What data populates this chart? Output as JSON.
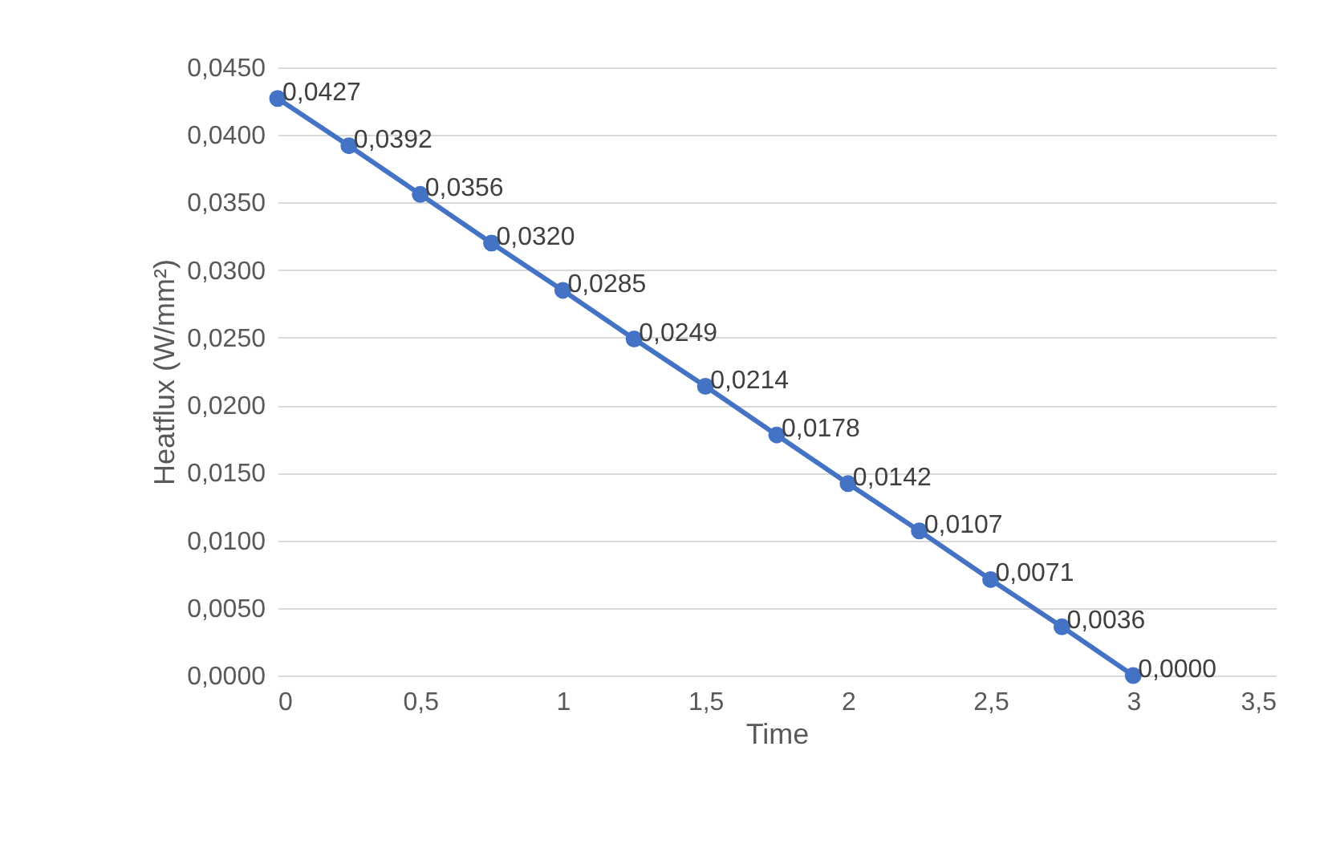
{
  "chart_data": {
    "type": "line",
    "xlabel": "Time",
    "ylabel": "Heatflux (W/mm²)",
    "x": [
      0,
      0.25,
      0.5,
      0.75,
      1,
      1.25,
      1.5,
      1.75,
      2,
      2.25,
      2.5,
      2.75,
      3
    ],
    "series": [
      {
        "color": "#4472c4",
        "values": [
          0.0427,
          0.0392,
          0.0356,
          0.032,
          0.0285,
          0.0249,
          0.0214,
          0.0178,
          0.0142,
          0.0107,
          0.0071,
          0.0036,
          0.0
        ],
        "value_labels": [
          "0,0427",
          "0,0392",
          "0,0356",
          "0,0320",
          "0,0285",
          "0,0249",
          "0,0214",
          "0,0178",
          "0,0142",
          "0,0107",
          "0,0071",
          "0,0036",
          "0,0000"
        ]
      }
    ],
    "xlim": [
      0,
      3.5
    ],
    "xticks": [
      0,
      {
        "value": 0.5,
        "label": "0,5"
      },
      1,
      {
        "value": 1.5,
        "label": "1,5"
      },
      2,
      {
        "value": 2.5,
        "label": "2,5"
      },
      3,
      {
        "value": 3.5,
        "label": "3,5"
      }
    ],
    "ylim": [
      0,
      0.045
    ],
    "yticks": [
      {
        "value": 0,
        "label": "0,0000"
      },
      {
        "value": 0.005,
        "label": "0,0050"
      },
      {
        "value": 0.01,
        "label": "0,0100"
      },
      {
        "value": 0.015,
        "label": "0,0150"
      },
      {
        "value": 0.02,
        "label": "0,0200"
      },
      {
        "value": 0.025,
        "label": "0,0250"
      },
      {
        "value": 0.03,
        "label": "0,0300"
      },
      {
        "value": 0.035,
        "label": "0,0350"
      },
      {
        "value": 0.04,
        "label": "0,0400"
      },
      {
        "value": 0.045,
        "label": "0,0450"
      }
    ],
    "grid": "y",
    "marker": "circle",
    "line_style": "solid"
  }
}
